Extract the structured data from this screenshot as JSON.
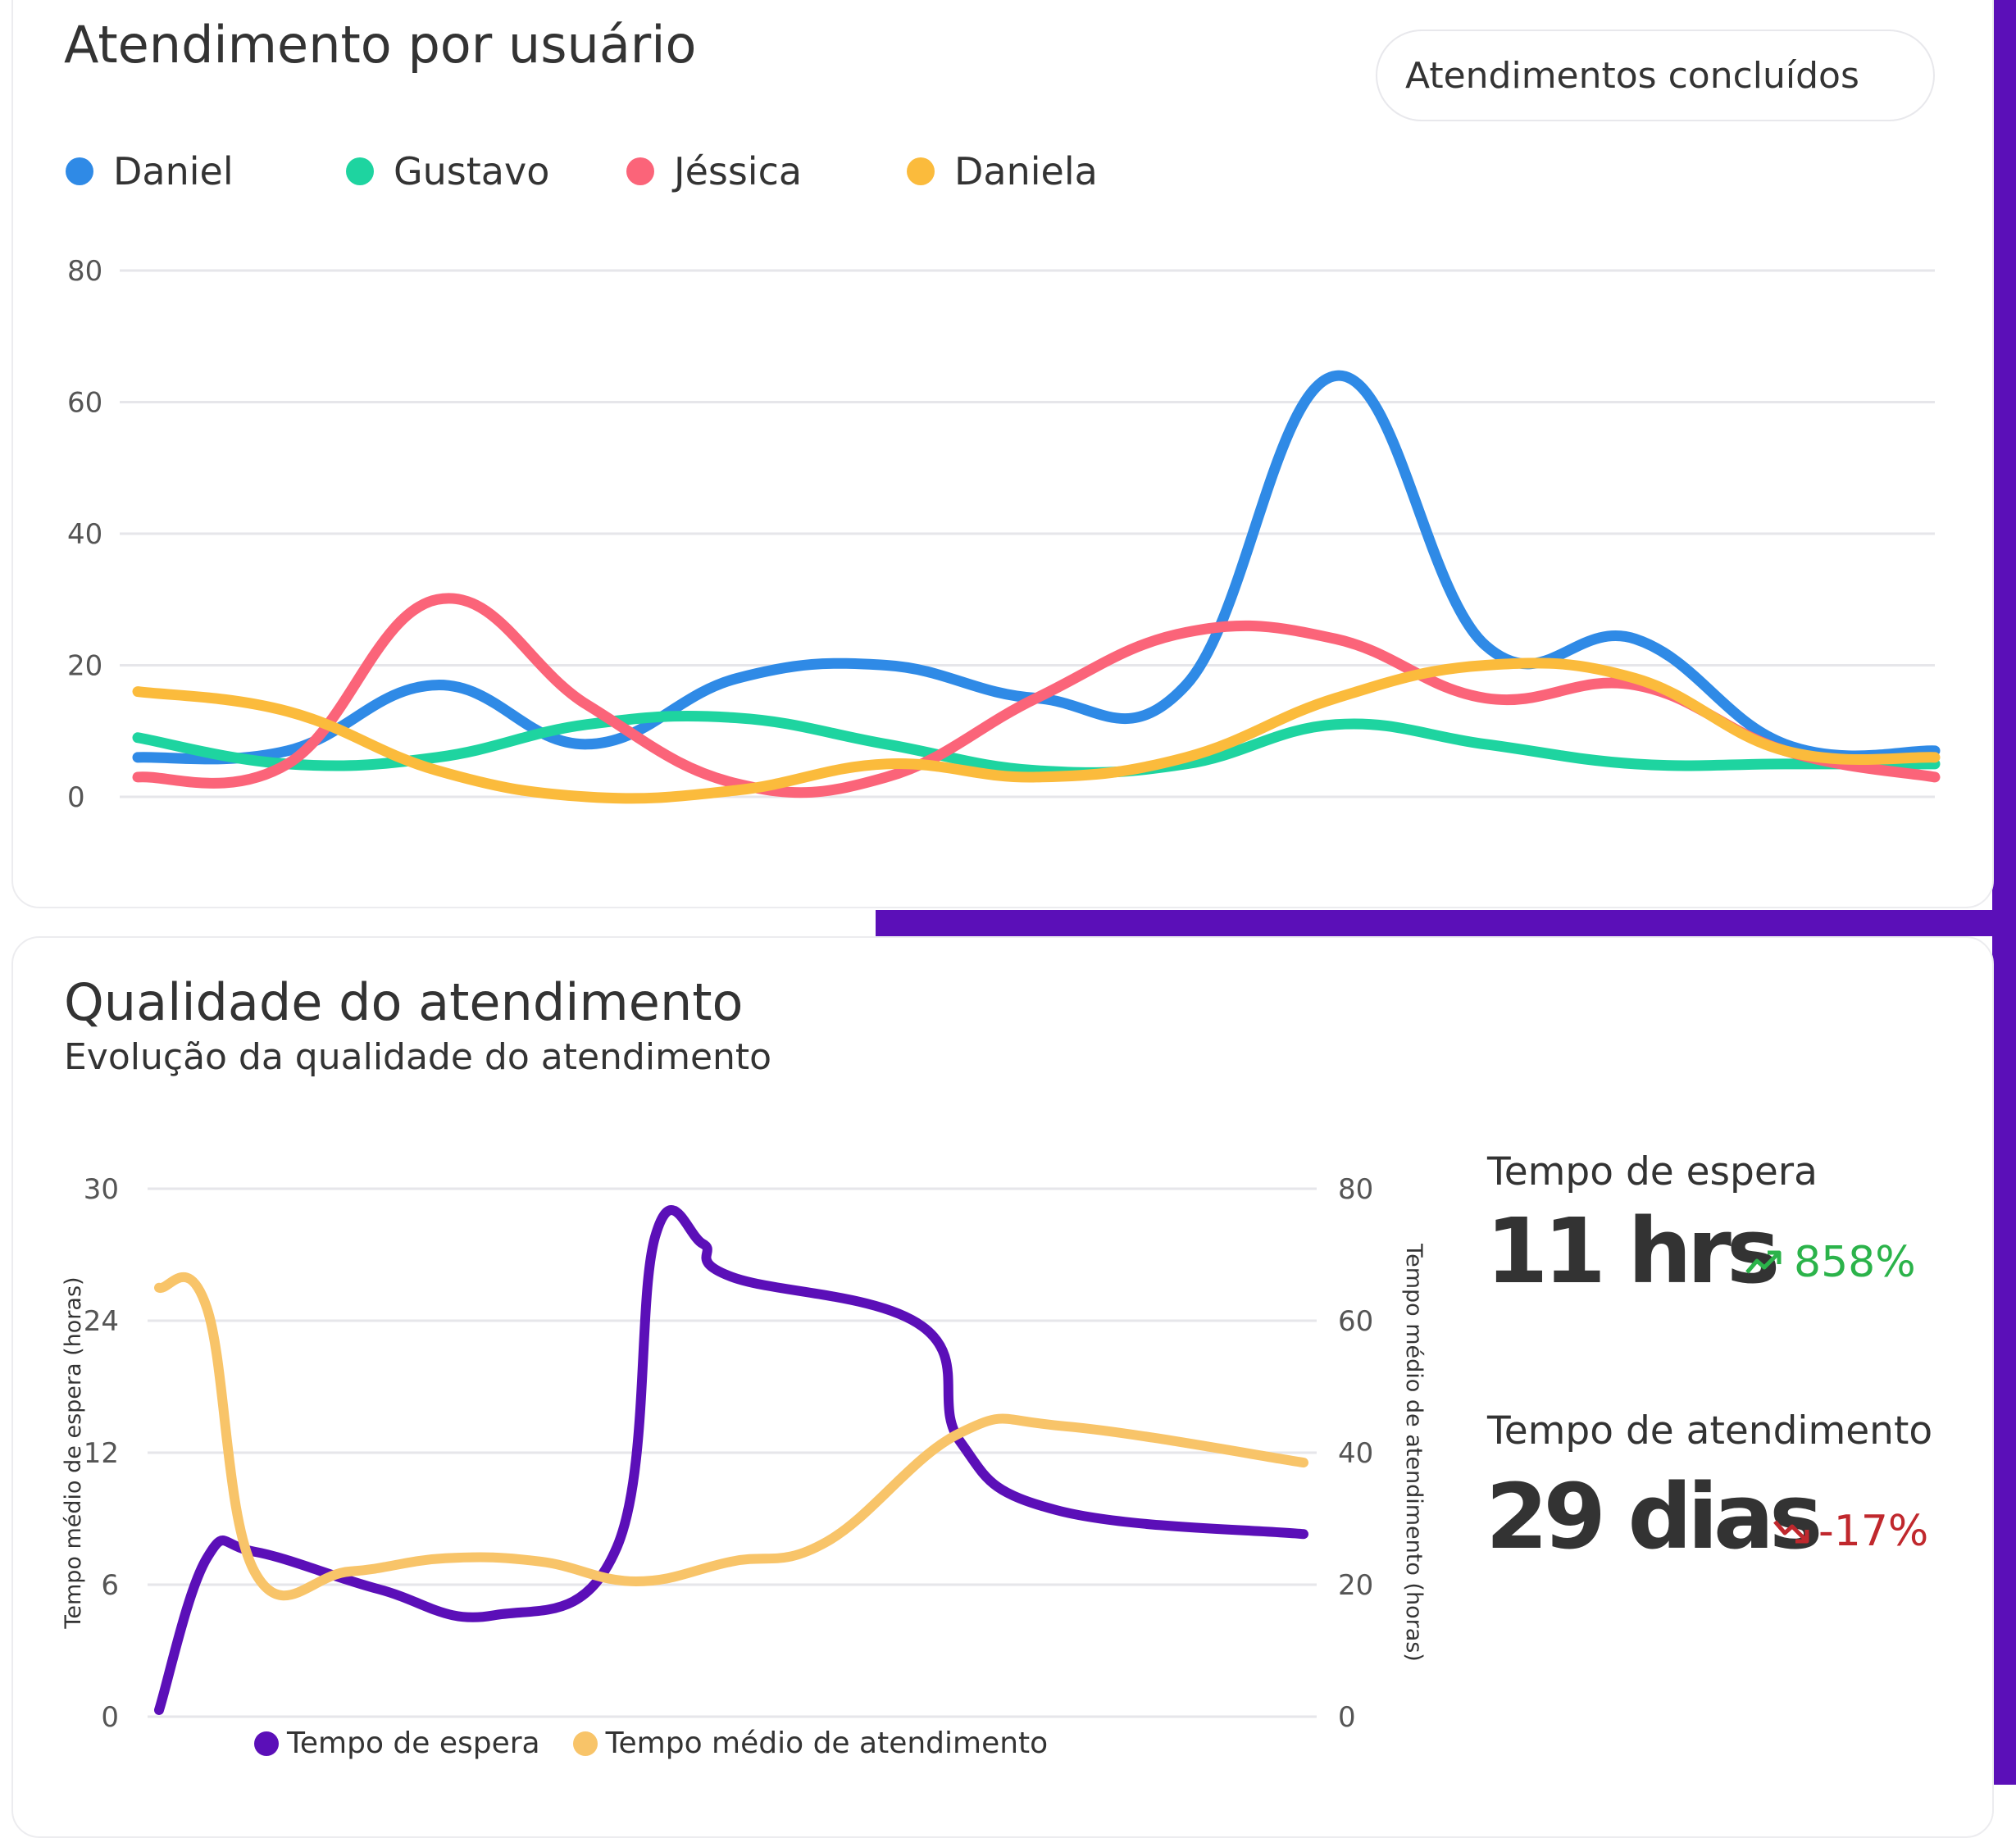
{
  "colors": {
    "daniel": "#2f8ae6",
    "gustavo": "#1ed4a0",
    "jessica": "#fb6479",
    "daniela": "#fbbb3c",
    "espera": "#5b0fb8",
    "medio": "#f8c469",
    "up": "#2bb34a",
    "down": "#c0282d",
    "accent": "#5b0fb8"
  },
  "card1": {
    "title": "Atendimento por usuário",
    "select_value": "Atendimentos concluídos"
  },
  "card2": {
    "title": "Qualidade do atendimento",
    "subtitle": "Evolução da qualidade do atendimento"
  },
  "kpis": [
    {
      "label": "Tempo de espera",
      "value": "11 hrs",
      "delta": "858%",
      "trend": "up",
      "icon": "trending-up-icon"
    },
    {
      "label": "Tempo de atendimento",
      "value": "29 dias",
      "delta": "-17%",
      "trend": "down",
      "icon": "trending-down-icon"
    }
  ],
  "chart_data": [
    {
      "type": "line",
      "yticks": [
        "0",
        "20",
        "40",
        "60",
        "80"
      ],
      "ylim": [
        0,
        80
      ],
      "x": [
        0,
        1,
        2,
        3,
        4,
        5,
        6,
        7,
        8,
        9,
        10,
        11,
        12
      ],
      "grid": true,
      "legend_position": "top-left",
      "series": [
        {
          "name": "Daniel",
          "color_key": "daniel",
          "values": [
            6,
            7,
            17,
            8,
            18,
            20,
            15,
            17,
            64,
            23,
            24,
            8,
            7
          ]
        },
        {
          "name": "Gustavo",
          "color_key": "gustavo",
          "values": [
            9,
            5,
            6,
            11,
            12,
            8,
            4,
            5,
            11,
            8,
            5,
            5,
            5
          ]
        },
        {
          "name": "Jéssica",
          "color_key": "jessica",
          "values": [
            3,
            5,
            30,
            14,
            2,
            3,
            15,
            25,
            24,
            15,
            17,
            7,
            3
          ]
        },
        {
          "name": "Daniela",
          "color_key": "daniela",
          "values": [
            16,
            13,
            4,
            0,
            1,
            5,
            3,
            6,
            15,
            20,
            18,
            7,
            6
          ]
        }
      ]
    },
    {
      "type": "line",
      "ylabel": "Tempo médio de espera (horas)",
      "y2label": "Tempo médio de atendimento (horas)",
      "yticks": [
        "0",
        "6",
        "12",
        "24",
        "30"
      ],
      "y2ticks": [
        "0",
        "20",
        "40",
        "60",
        "80"
      ],
      "y2lim": [
        0,
        80
      ],
      "grid": true,
      "legend_position": "bottom",
      "series": [
        {
          "name": "Tempo de espera",
          "color_key": "espera",
          "axis": "left",
          "values": [
            0.3,
            7.2,
            7.5,
            5.8,
            4.6,
            7.7,
            27.8,
            27.5,
            26,
            23.5,
            13,
            9.4,
            8.3
          ],
          "values_note_x": [
            0,
            0.5,
            1,
            2.3,
            3.5,
            4.8,
            5.2,
            5.7,
            6,
            8,
            8.4,
            9.4,
            12
          ]
        },
        {
          "name": "Tempo médio de atendimento",
          "color_key": "medio",
          "axis": "right",
          "values": [
            65,
            62,
            22,
            22,
            24,
            23.5,
            20.5,
            23.5,
            26.5,
            43,
            44,
            38.5
          ]
        }
      ]
    }
  ],
  "chart2_x_espera": [
    0,
    0.5,
    1,
    2.3,
    3.5,
    4.8,
    5.2,
    5.7,
    6,
    8,
    8.4,
    9.4,
    12
  ],
  "chart2_x_medio": [
    0,
    0.5,
    1,
    2,
    3,
    4,
    5,
    6,
    7,
    8.4,
    9.5,
    12
  ]
}
